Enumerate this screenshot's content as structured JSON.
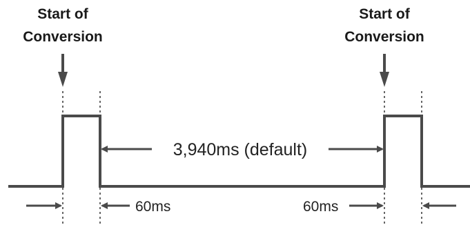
{
  "diagram": {
    "start_label_left": {
      "line1": "Start of",
      "line2": "Conversion"
    },
    "start_label_right": {
      "line1": "Start of",
      "line2": "Conversion"
    },
    "period_label": "3,940ms (default)",
    "pulse_label_left": "60ms",
    "pulse_label_right": "60ms",
    "colors": {
      "line": "#4a4a4a",
      "text": "#1a1a1a",
      "background": "#ffffff"
    }
  }
}
